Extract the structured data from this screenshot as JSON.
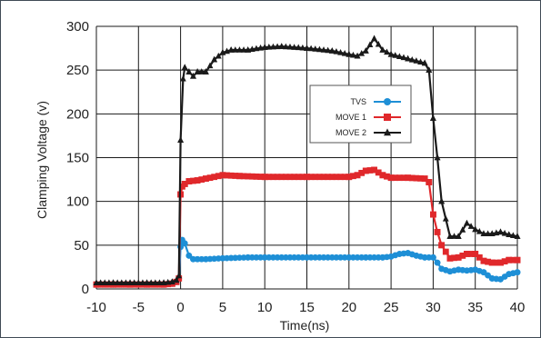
{
  "chart_data": {
    "type": "line",
    "xlabel": "Time(ns)",
    "ylabel": "Clamping Voltage (v)",
    "xlim": [
      -10,
      40
    ],
    "ylim": [
      0,
      300
    ],
    "x_ticks": [
      "-10",
      "-5",
      "0",
      "5",
      "10",
      "15",
      "20",
      "25",
      "30",
      "35",
      "40"
    ],
    "y_ticks": [
      "0",
      "50",
      "100",
      "150",
      "200",
      "250",
      "300"
    ],
    "grid": true,
    "legend_position": "center-right",
    "series": [
      {
        "name": "TVS",
        "color": "#1e8fd6",
        "marker": "circle",
        "x": [
          -10,
          -9,
          -8,
          -7,
          -6,
          -5,
          -4,
          -3,
          -2,
          -1,
          -0.5,
          -0.2,
          0,
          0.2,
          0.5,
          1,
          1.5,
          2,
          3,
          5,
          8,
          10,
          15,
          20,
          22,
          24,
          25,
          26,
          27,
          28,
          29,
          30,
          30.5,
          31,
          32,
          33,
          34,
          35,
          36,
          37,
          38,
          39,
          40
        ],
        "y": [
          5,
          5,
          5,
          5,
          5,
          5,
          5,
          5,
          5,
          6,
          8,
          12,
          48,
          56,
          52,
          38,
          34,
          34,
          34,
          35,
          36,
          36,
          36,
          36,
          36,
          36,
          37,
          40,
          41,
          38,
          36,
          36,
          30,
          23,
          20,
          22,
          21,
          22,
          19,
          12,
          11,
          17,
          19
        ]
      },
      {
        "name": "MOVE 1",
        "color": "#e0282b",
        "marker": "square",
        "x": [
          -10,
          -8,
          -6,
          -4,
          -2,
          -1,
          -0.5,
          -0.2,
          0,
          0.2,
          0.5,
          1,
          2,
          3,
          5,
          7,
          10,
          15,
          20,
          21,
          22,
          23,
          24,
          25,
          27,
          29,
          29.5,
          30,
          30.5,
          31,
          32,
          33,
          34,
          35,
          36,
          37,
          38,
          39,
          40
        ],
        "y": [
          5,
          5,
          5,
          5,
          5,
          6,
          8,
          12,
          108,
          117,
          120,
          123,
          124,
          126,
          130,
          129,
          128,
          128,
          128,
          130,
          135,
          136,
          130,
          127,
          127,
          126,
          122,
          85,
          65,
          50,
          35,
          36,
          40,
          40,
          32,
          30,
          30,
          33,
          33
        ]
      },
      {
        "name": "MOVE 2",
        "color": "#1a1a1a",
        "marker": "triangle",
        "x": [
          -10,
          -8,
          -6,
          -4,
          -2,
          -1,
          -0.5,
          -0.2,
          0,
          0.3,
          0.5,
          1,
          1.5,
          2,
          3,
          4,
          5,
          6,
          8,
          10,
          12,
          15,
          18,
          20,
          21,
          22,
          23,
          24,
          25,
          27,
          29,
          29.5,
          30,
          30.5,
          31,
          32,
          33,
          34,
          35,
          36,
          37,
          38,
          39,
          40
        ],
        "y": [
          7,
          7,
          7,
          7,
          7,
          8,
          10,
          15,
          170,
          240,
          253,
          248,
          243,
          248,
          248,
          262,
          270,
          273,
          273,
          276,
          277,
          275,
          272,
          268,
          266,
          272,
          286,
          273,
          268,
          263,
          258,
          250,
          195,
          150,
          100,
          60,
          60,
          75,
          68,
          63,
          63,
          65,
          62,
          60
        ]
      }
    ]
  }
}
